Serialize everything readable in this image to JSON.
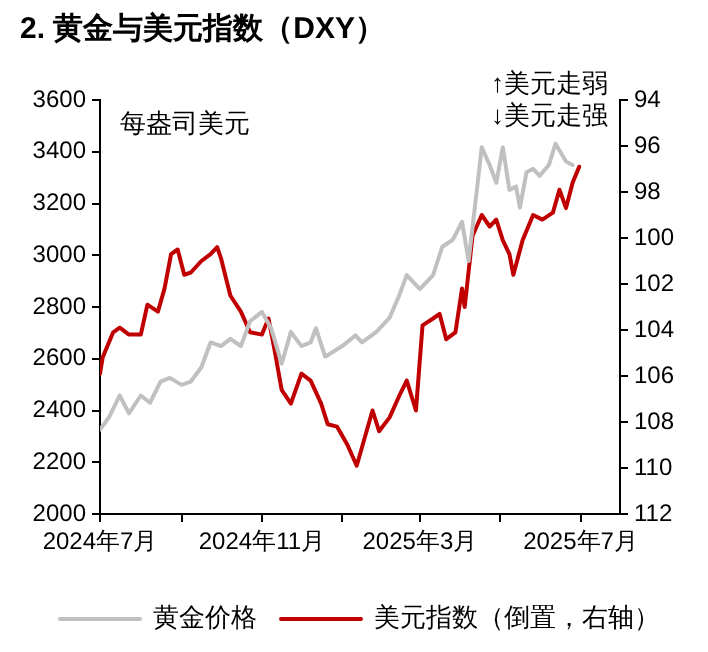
{
  "chart_data": {
    "type": "line",
    "title": "2. 黄金与美元指数（DXY）",
    "annotations": [
      "每盎司美元",
      "↑美元走弱",
      "↓美元走强"
    ],
    "xlim": [
      "2024-07-01",
      "2025-07-31"
    ],
    "xticks": [
      {
        "value": "2024-07-01",
        "label": "2024年7月"
      },
      {
        "value": "2024-09-01",
        "label": null
      },
      {
        "value": "2024-11-01",
        "label": "2024年11月"
      },
      {
        "value": "2025-01-01",
        "label": null
      },
      {
        "value": "2025-03-01",
        "label": "2025年3月"
      },
      {
        "value": "2025-05-01",
        "label": null
      },
      {
        "value": "2025-07-01",
        "label": "2025年7月"
      }
    ],
    "ylim": [
      2000,
      3600
    ],
    "yticks": [
      2000,
      2200,
      2400,
      2600,
      2800,
      3000,
      3200,
      3400,
      3600
    ],
    "y2lim": [
      112,
      94
    ],
    "y2ticks": [
      94,
      96,
      98,
      100,
      102,
      104,
      106,
      108,
      110,
      112
    ],
    "grid": false,
    "legend": "bottom",
    "marker": "none",
    "line_style": "solid",
    "series": [
      {
        "name": "黄金价格",
        "color": "#c0c0c0",
        "x": [
          "2024-07-01",
          "2024-07-08",
          "2024-07-16",
          "2024-07-23",
          "2024-08-01",
          "2024-08-08",
          "2024-08-16",
          "2024-08-23",
          "2024-09-01",
          "2024-09-08",
          "2024-09-16",
          "2024-09-23",
          "2024-10-01",
          "2024-10-08",
          "2024-10-16",
          "2024-10-23",
          "2024-11-01",
          "2024-11-08",
          "2024-11-16",
          "2024-11-23",
          "2024-12-01",
          "2024-12-08",
          "2024-12-12",
          "2024-12-19",
          "2025-01-01",
          "2025-01-11",
          "2025-01-16",
          "2025-01-27",
          "2025-02-06",
          "2025-02-13",
          "2025-02-19",
          "2025-03-01",
          "2025-03-11",
          "2025-03-18",
          "2025-03-26",
          "2025-04-02",
          "2025-04-07",
          "2025-04-12",
          "2025-04-17",
          "2025-04-23",
          "2025-04-28",
          "2025-05-03",
          "2025-05-08",
          "2025-05-13",
          "2025-05-16",
          "2025-05-21",
          "2025-05-26",
          "2025-05-31",
          "2025-06-07",
          "2025-06-12",
          "2025-06-20",
          "2025-06-25"
        ],
        "values": [
          2326,
          2375,
          2458,
          2389,
          2458,
          2430,
          2512,
          2526,
          2499,
          2512,
          2567,
          2663,
          2649,
          2677,
          2649,
          2745,
          2781,
          2718,
          2581,
          2704,
          2649,
          2663,
          2718,
          2608,
          2649,
          2690,
          2663,
          2704,
          2759,
          2841,
          2923,
          2869,
          2923,
          3033,
          3060,
          3129,
          2978,
          3197,
          3417,
          3349,
          3280,
          3417,
          3252,
          3266,
          3184,
          3321,
          3334,
          3307,
          3349,
          3431,
          3362,
          3349
        ]
      },
      {
        "name": "美元指数（倒置，右轴）",
        "color": "#c00000",
        "axis": "y2",
        "x": [
          "2024-07-01",
          "2024-07-03",
          "2024-07-11",
          "2024-07-16",
          "2024-07-23",
          "2024-08-01",
          "2024-08-06",
          "2024-08-14",
          "2024-08-19",
          "2024-08-24",
          "2024-08-29",
          "2024-09-03",
          "2024-09-08",
          "2024-09-16",
          "2024-09-23",
          "2024-09-28",
          "2024-10-01",
          "2024-10-08",
          "2024-10-16",
          "2024-10-23",
          "2024-11-01",
          "2024-11-06",
          "2024-11-11",
          "2024-11-16",
          "2024-11-23",
          "2024-12-01",
          "2024-12-08",
          "2024-12-16",
          "2024-12-21",
          "2024-12-28",
          "2025-01-05",
          "2025-01-12",
          "2025-01-24",
          "2025-01-29",
          "2025-02-06",
          "2025-02-13",
          "2025-02-19",
          "2025-02-26",
          "2025-03-03",
          "2025-03-11",
          "2025-03-16",
          "2025-03-21",
          "2025-03-28",
          "2025-04-02",
          "2025-04-04",
          "2025-04-10",
          "2025-04-17",
          "2025-04-23",
          "2025-04-28",
          "2025-05-03",
          "2025-05-08",
          "2025-05-11",
          "2025-05-18",
          "2025-05-26",
          "2025-06-02",
          "2025-06-10",
          "2025-06-15",
          "2025-06-20",
          "2025-06-25",
          "2025-06-30"
        ],
        "values": [
          105.9,
          105.2,
          104.1,
          103.9,
          104.2,
          104.2,
          102.9,
          103.2,
          102.2,
          100.7,
          100.5,
          101.6,
          101.5,
          101.0,
          100.7,
          100.4,
          100.9,
          102.5,
          103.2,
          104.1,
          104.2,
          103.5,
          105.0,
          106.6,
          107.2,
          105.9,
          106.2,
          107.2,
          108.1,
          108.2,
          109.0,
          109.9,
          107.5,
          108.4,
          107.8,
          106.9,
          106.2,
          107.5,
          103.8,
          103.5,
          103.3,
          104.4,
          104.1,
          102.2,
          103.0,
          99.9,
          99.0,
          99.5,
          99.2,
          100.1,
          100.7,
          101.6,
          100.1,
          99.0,
          99.2,
          98.9,
          97.9,
          98.7,
          97.6,
          96.9
        ]
      }
    ]
  }
}
